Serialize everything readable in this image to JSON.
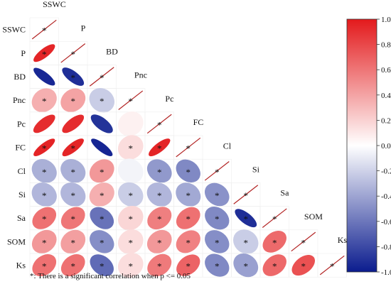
{
  "chart_data": {
    "type": "heatmap",
    "variables": [
      "SSWC",
      "P",
      "BD",
      "Pnc",
      "Pc",
      "FC",
      "Cl",
      "Si",
      "Sa",
      "SOM",
      "Ks"
    ],
    "rows": [
      {
        "name": "SSWC",
        "r": [
          1.0
        ],
        "sig": [
          true
        ]
      },
      {
        "name": "P",
        "r": [
          0.95,
          1.0
        ],
        "sig": [
          true,
          true
        ]
      },
      {
        "name": "BD",
        "r": [
          -0.95,
          -0.92,
          1.0
        ],
        "sig": [
          false,
          true,
          true
        ]
      },
      {
        "name": "Pnc",
        "r": [
          0.35,
          0.4,
          -0.22,
          1.0
        ],
        "sig": [
          true,
          true,
          true,
          true
        ]
      },
      {
        "name": "Pc",
        "r": [
          0.92,
          0.92,
          -0.9,
          0.06,
          1.0
        ],
        "sig": [
          false,
          false,
          false,
          false,
          true
        ]
      },
      {
        "name": "FC",
        "r": [
          0.96,
          0.95,
          -0.96,
          0.15,
          0.95,
          1.0
        ],
        "sig": [
          true,
          true,
          false,
          true,
          true,
          true
        ]
      },
      {
        "name": "Cl",
        "r": [
          -0.35,
          -0.35,
          0.45,
          -0.05,
          -0.45,
          -0.52,
          1.0
        ],
        "sig": [
          true,
          true,
          true,
          false,
          true,
          true,
          true
        ]
      },
      {
        "name": "Si",
        "r": [
          -0.32,
          -0.32,
          0.35,
          -0.22,
          -0.32,
          -0.38,
          -0.48,
          1.0
        ],
        "sig": [
          true,
          true,
          true,
          true,
          true,
          true,
          true,
          true
        ]
      },
      {
        "name": "Sa",
        "r": [
          0.62,
          0.6,
          -0.62,
          0.18,
          0.56,
          0.62,
          -0.52,
          -0.92,
          1.0
        ],
        "sig": [
          true,
          true,
          true,
          true,
          true,
          true,
          true,
          true,
          true
        ]
      },
      {
        "name": "SOM",
        "r": [
          0.45,
          0.42,
          -0.5,
          0.15,
          0.45,
          0.55,
          -0.5,
          -0.22,
          0.65,
          1.0
        ],
        "sig": [
          true,
          true,
          true,
          true,
          true,
          true,
          true,
          true,
          true,
          true
        ]
      },
      {
        "name": "Ks",
        "r": [
          0.62,
          0.62,
          -0.65,
          0.15,
          0.58,
          0.68,
          -0.52,
          -0.42,
          0.66,
          0.76,
          1.0
        ],
        "sig": [
          true,
          true,
          true,
          true,
          true,
          true,
          true,
          true,
          true,
          true,
          true
        ]
      }
    ],
    "colorbar": {
      "min": -1.0,
      "max": 1.0,
      "ticks": [
        "1.0",
        "0.80",
        "0.60",
        "0.40",
        "0.20",
        "0.0",
        "-0.20",
        "-0.40",
        "-0.60",
        "-0.80",
        "-1.0"
      ],
      "colors": {
        "low": "#0b1c8e",
        "mid": "#ffffff",
        "high": "#e31a1c"
      }
    },
    "significance_marker": "*",
    "footnote": "*: There is a significant correlation when p <= 0.05"
  }
}
